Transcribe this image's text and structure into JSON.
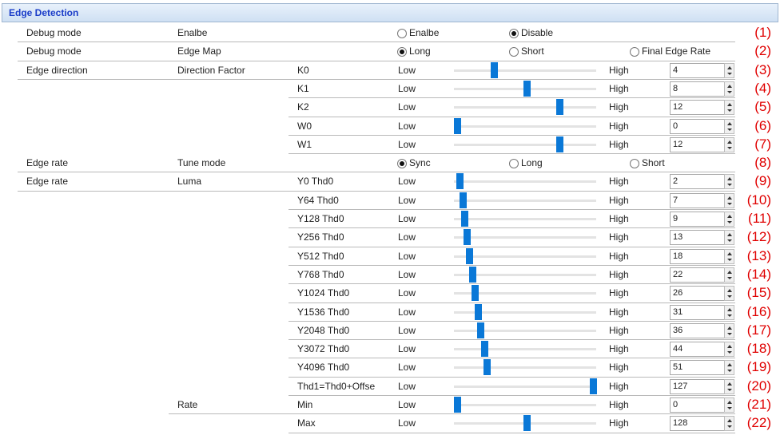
{
  "header": {
    "title": "Edge Detection"
  },
  "rows": [
    {
      "col1": "Debug mode",
      "col2": "Enalbe",
      "options": [
        {
          "label": "Enalbe",
          "selected": false
        },
        {
          "label": "Disable",
          "selected": true
        }
      ],
      "annotation": "(1)"
    },
    {
      "col1": "Debug mode",
      "col2": "Edge Map",
      "options": [
        {
          "label": "Long",
          "selected": true
        },
        {
          "label": "Short",
          "selected": false
        },
        {
          "label": "Final Edge Rate",
          "selected": false
        }
      ],
      "annotation": "(2)"
    },
    {
      "col1": "Edge direction",
      "col2": "Direction Factor",
      "col3": "K0",
      "low": "Low",
      "high": "High",
      "value": 4,
      "annotation": "(3)"
    },
    {
      "col3": "K1",
      "low": "Low",
      "high": "High",
      "value": 8,
      "annotation": "(4)"
    },
    {
      "col3": "K2",
      "low": "Low",
      "high": "High",
      "value": 12,
      "annotation": "(5)"
    },
    {
      "col3": "W0",
      "low": "Low",
      "high": "High",
      "value": 0,
      "annotation": "(6)"
    },
    {
      "col3": "W1",
      "low": "Low",
      "high": "High",
      "value": 12,
      "annotation": "(7)"
    },
    {
      "col1": "Edge rate",
      "col2": "Tune mode",
      "options": [
        {
          "label": "Sync",
          "selected": true
        },
        {
          "label": "Long",
          "selected": false
        },
        {
          "label": "Short",
          "selected": false
        }
      ],
      "annotation": "(8)"
    },
    {
      "col1": "Edge rate",
      "col2": "Luma",
      "col3": "Y0 Thd0",
      "low": "Low",
      "high": "High",
      "value": 2,
      "annotation": "(9)"
    },
    {
      "col3": "Y64 Thd0",
      "low": "Low",
      "high": "High",
      "value": 7,
      "annotation": "(10)"
    },
    {
      "col3": "Y128 Thd0",
      "low": "Low",
      "high": "High",
      "value": 9,
      "annotation": "(11)"
    },
    {
      "col3": "Y256 Thd0",
      "low": "Low",
      "high": "High",
      "value": 13,
      "annotation": "(12)"
    },
    {
      "col3": "Y512 Thd0",
      "low": "Low",
      "high": "High",
      "value": 18,
      "annotation": "(13)"
    },
    {
      "col3": "Y768 Thd0",
      "low": "Low",
      "high": "High",
      "value": 22,
      "annotation": "(14)"
    },
    {
      "col3": "Y1024 Thd0",
      "low": "Low",
      "high": "High",
      "value": 26,
      "annotation": "(15)"
    },
    {
      "col3": "Y1536 Thd0",
      "low": "Low",
      "high": "High",
      "value": 31,
      "annotation": "(16)"
    },
    {
      "col3": "Y2048 Thd0",
      "low": "Low",
      "high": "High",
      "value": 36,
      "annotation": "(17)"
    },
    {
      "col3": "Y3072 Thd0",
      "low": "Low",
      "high": "High",
      "value": 44,
      "annotation": "(18)"
    },
    {
      "col3": "Y4096 Thd0",
      "low": "Low",
      "high": "High",
      "value": 51,
      "annotation": "(19)"
    },
    {
      "col3": "Thd1=Thd0+Offse",
      "low": "Low",
      "high": "High",
      "value": 127,
      "annotation": "(20)"
    },
    {
      "col2": "Rate",
      "col3": "Min",
      "low": "Low",
      "high": "High",
      "value": 0,
      "annotation": "(21)"
    },
    {
      "col3": "Max",
      "low": "Low",
      "high": "High",
      "value": 128,
      "annotation": "(22)"
    }
  ]
}
